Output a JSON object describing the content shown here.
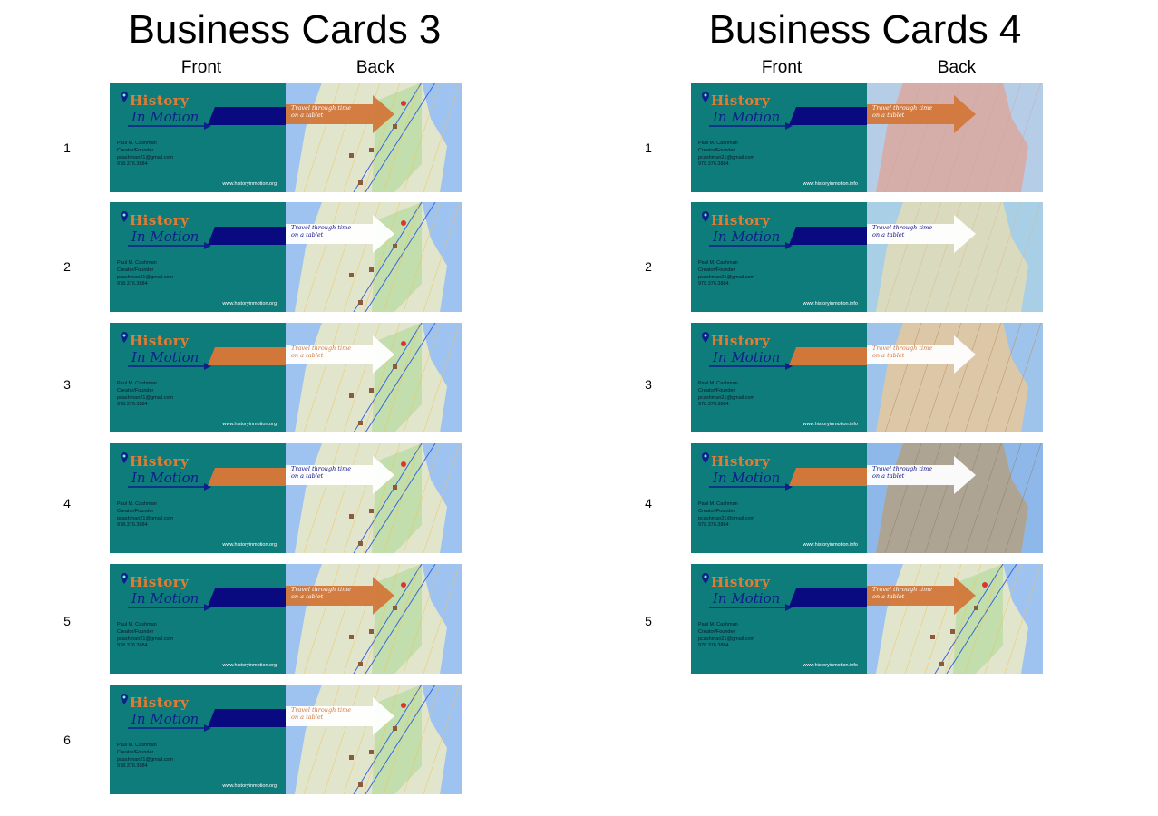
{
  "left": {
    "title": "Business Cards 3",
    "front_label": "Front",
    "back_label": "Back",
    "cards": [
      {
        "num": "1",
        "front_arrow": "#0a0a80",
        "back_arrow": "#d2773a",
        "back_text": "#ffffff",
        "map": "street"
      },
      {
        "num": "2",
        "front_arrow": "#0a0a80",
        "back_arrow": "#ffffff",
        "back_text": "#0a0a80",
        "map": "street"
      },
      {
        "num": "3",
        "front_arrow": "#d2773a",
        "back_arrow": "#ffffff",
        "back_text": "#d2773a",
        "map": "street"
      },
      {
        "num": "4",
        "front_arrow": "#d2773a",
        "back_arrow": "#ffffff",
        "back_text": "#0a0a80",
        "map": "street"
      },
      {
        "num": "5",
        "front_arrow": "#0a0a80",
        "back_arrow": "#d2773a",
        "back_text": "#ffffff",
        "map": "street"
      },
      {
        "num": "6",
        "front_arrow": "#0a0a80",
        "back_arrow": "#ffffff",
        "back_text": "#d2773a",
        "map": "street"
      }
    ],
    "website": "www.historyinmotion.org"
  },
  "right": {
    "title": "Business Cards 4",
    "front_label": "Front",
    "back_label": "Back",
    "cards": [
      {
        "num": "1",
        "front_arrow": "#0a0a80",
        "back_arrow": "#d2773a",
        "back_text": "#ffffff",
        "map": "old-red"
      },
      {
        "num": "2",
        "front_arrow": "#0a0a80",
        "back_arrow": "#ffffff",
        "back_text": "#0a0a80",
        "map": "old-green"
      },
      {
        "num": "3",
        "front_arrow": "#d2773a",
        "back_arrow": "#ffffff",
        "back_text": "#d2773a",
        "map": "old-tan"
      },
      {
        "num": "4",
        "front_arrow": "#d2773a",
        "back_arrow": "#ffffff",
        "back_text": "#0a0a80",
        "map": "old-dark"
      },
      {
        "num": "5",
        "front_arrow": "#0a0a80",
        "back_arrow": "#d2773a",
        "back_text": "#ffffff",
        "map": "street"
      }
    ],
    "website": "www.historyinmotion.info"
  },
  "card_text": {
    "logo_history": "History",
    "logo_motion": "In Motion",
    "name": "Paul M. Cashman",
    "role": "Creator/Founder",
    "email": "pcashman21@gmail.com",
    "phone": "978.376.3884",
    "tagline_line1": "Travel through time",
    "tagline_line2": "on a tablet"
  },
  "colors": {
    "card_teal": "#0e7c7b",
    "navy": "#0a0a80",
    "orange": "#d2773a"
  }
}
